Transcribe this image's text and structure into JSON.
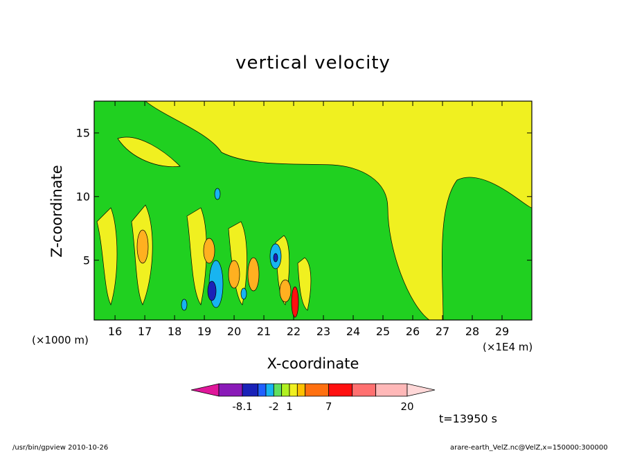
{
  "chart_data": {
    "type": "contour",
    "title": "vertical velocity",
    "xlabel": "X-coordinate",
    "ylabel": "Z-coordinate",
    "x_unit_left": "(×1000 m)",
    "x_unit_right": "(×1E4 m)",
    "xlim": [
      15.3,
      30
    ],
    "ylim": [
      0.3,
      17.5
    ],
    "x_ticks": [
      "16",
      "17",
      "18",
      "19",
      "20",
      "21",
      "22",
      "23",
      "24",
      "25",
      "26",
      "27",
      "28",
      "29"
    ],
    "y_ticks": [
      "5",
      "10",
      "15"
    ],
    "y_tick_values": [
      5,
      10,
      15
    ],
    "colorbar": {
      "labels": [
        "-8.1",
        "-2",
        "1",
        "7",
        "20"
      ],
      "colors": [
        "#e0179a",
        "#8a1ab8",
        "#1a22b8",
        "#2060ff",
        "#18b4f0",
        "#60e060",
        "#b0f020",
        "#f0f020",
        "#ffc000",
        "#ff7010",
        "#ff1010",
        "#ff7070",
        "#ffb8b8",
        "#ffd8d8"
      ]
    },
    "time_label": "t=13950 s",
    "field_colors": {
      "background": "#f0f020",
      "positive_light": "#f0f020",
      "near_zero": "#20d020",
      "weak_updraft": "#ffb020",
      "strong_updraft": "#ff1010",
      "downdraft_light": "#18b4f0",
      "downdraft_strong": "#1a22b8"
    }
  },
  "footer": {
    "left": "/usr/bin/gpview   2010-10-26",
    "right": "arare-earth_VelZ.nc@VelZ,x=150000:300000"
  }
}
